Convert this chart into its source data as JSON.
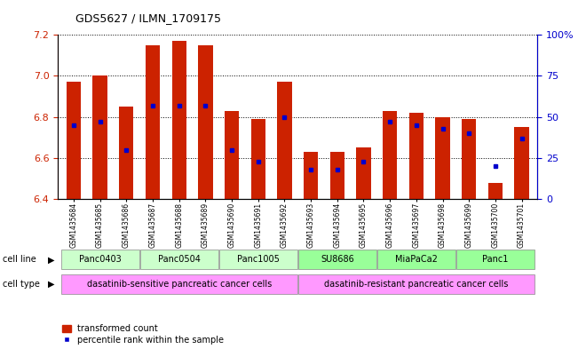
{
  "title": "GDS5627 / ILMN_1709175",
  "samples": [
    "GSM1435684",
    "GSM1435685",
    "GSM1435686",
    "GSM1435687",
    "GSM1435688",
    "GSM1435689",
    "GSM1435690",
    "GSM1435691",
    "GSM1435692",
    "GSM1435693",
    "GSM1435694",
    "GSM1435695",
    "GSM1435696",
    "GSM1435697",
    "GSM1435698",
    "GSM1435699",
    "GSM1435700",
    "GSM1435701"
  ],
  "red_values": [
    6.97,
    7.0,
    6.85,
    7.15,
    7.17,
    7.15,
    6.83,
    6.79,
    6.97,
    6.63,
    6.63,
    6.65,
    6.83,
    6.82,
    6.8,
    6.79,
    6.48,
    6.75
  ],
  "blue_percentiles": [
    45,
    47,
    30,
    57,
    57,
    57,
    30,
    23,
    50,
    18,
    18,
    23,
    47,
    45,
    43,
    40,
    20,
    37
  ],
  "ylim_left": [
    6.4,
    7.2
  ],
  "yticks_left": [
    6.4,
    6.6,
    6.8,
    7.0,
    7.2
  ],
  "yticks_right": [
    0,
    25,
    50,
    75,
    100
  ],
  "cell_lines": [
    {
      "label": "Panc0403",
      "start": 0,
      "end": 2,
      "color": "#ccffcc"
    },
    {
      "label": "Panc0504",
      "start": 3,
      "end": 5,
      "color": "#ccffcc"
    },
    {
      "label": "Panc1005",
      "start": 6,
      "end": 8,
      "color": "#ccffcc"
    },
    {
      "label": "SU8686",
      "start": 9,
      "end": 11,
      "color": "#99ff99"
    },
    {
      "label": "MiaPaCa2",
      "start": 12,
      "end": 14,
      "color": "#99ff99"
    },
    {
      "label": "Panc1",
      "start": 15,
      "end": 17,
      "color": "#99ff99"
    }
  ],
  "cell_types": [
    {
      "label": "dasatinib-sensitive pancreatic cancer cells",
      "start": 0,
      "end": 8
    },
    {
      "label": "dasatinib-resistant pancreatic cancer cells",
      "start": 9,
      "end": 17
    }
  ],
  "cell_type_color": "#ff99ff",
  "bar_color": "#cc2200",
  "dot_color": "#0000cc",
  "tick_bg_color": "#d0d0d0"
}
